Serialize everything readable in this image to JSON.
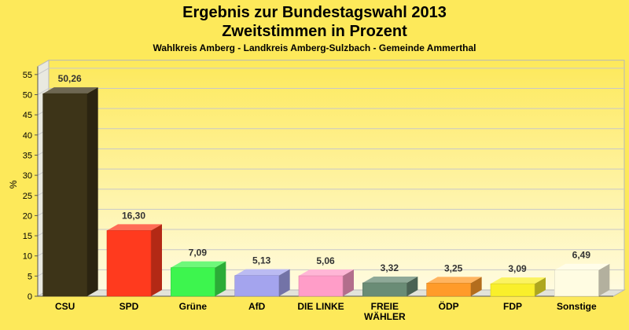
{
  "chart_data": {
    "type": "bar",
    "title": [
      "Ergebnis zur Bundestagswahl 2013",
      "Zweitstimmen in Prozent"
    ],
    "subtitle": "Wahlkreis Amberg - Landkreis Amberg-Sulzbach - Gemeinde Ammerthal",
    "ylabel": "%",
    "ylim": [
      0,
      57
    ],
    "yticks": [
      "0",
      "5",
      "10",
      "15",
      "20",
      "25",
      "30",
      "35",
      "40",
      "45",
      "50",
      "55"
    ],
    "grid": true,
    "categories": [
      "CSU",
      "SPD",
      "Grüne",
      "AfD",
      "DIE LINKE",
      "FREIE WÄHLER",
      "ÖDP",
      "FDP",
      "Sonstige"
    ],
    "category_labels": [
      [
        "CSU"
      ],
      [
        "SPD"
      ],
      [
        "Grüne"
      ],
      [
        "AfD"
      ],
      [
        "DIE LINKE"
      ],
      [
        "FREIE",
        "WÄHLER"
      ],
      [
        "ÖDP"
      ],
      [
        "FDP"
      ],
      [
        "Sonstige"
      ]
    ],
    "values": [
      50.26,
      16.3,
      7.09,
      5.13,
      5.06,
      3.32,
      3.25,
      3.09,
      6.49
    ],
    "value_labels": [
      "50,26",
      "16,30",
      "7,09",
      "5,13",
      "5,06",
      "3,32",
      "3,25",
      "3,09",
      "6,49"
    ],
    "colors": [
      "#3d3418",
      "#ff3a1e",
      "#3df54e",
      "#a4a4ee",
      "#ff9dc8",
      "#6a8c76",
      "#ff9b2a",
      "#f9ef2b",
      "#fffce2"
    ]
  }
}
